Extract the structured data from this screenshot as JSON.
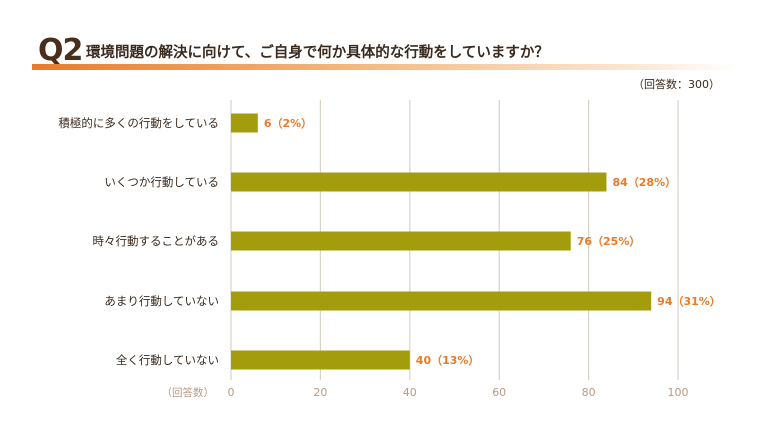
{
  "header": {
    "question_no": "Q2",
    "question_text": "環境問題の解決に向けて、ご自身で何か具体的な行動をしていますか？",
    "respondents_note": "（回答数：300）"
  },
  "colors": {
    "bar": "#a39c0c",
    "data_label": "#e87b2a",
    "accent": "#e87b2a",
    "grid": "#d9d2c8"
  },
  "chart_data": {
    "type": "bar",
    "orientation": "horizontal",
    "categories": [
      "積極的に多くの行動をしている",
      "いくつか行動している",
      "時々行動することがある",
      "あまり行動していない",
      "全く行動していない"
    ],
    "values": [
      6,
      84,
      76,
      94,
      40
    ],
    "percents": [
      "2%",
      "28%",
      "25%",
      "31%",
      "13%"
    ],
    "data_labels": [
      "6（2%）",
      "84（28%）",
      "76（25%）",
      "94（31%）",
      "40（13%）"
    ],
    "xlim": [
      0,
      100
    ],
    "xticks": [
      0,
      20,
      40,
      60,
      80,
      100
    ],
    "xlabel": "（回答数）",
    "grid": true
  }
}
